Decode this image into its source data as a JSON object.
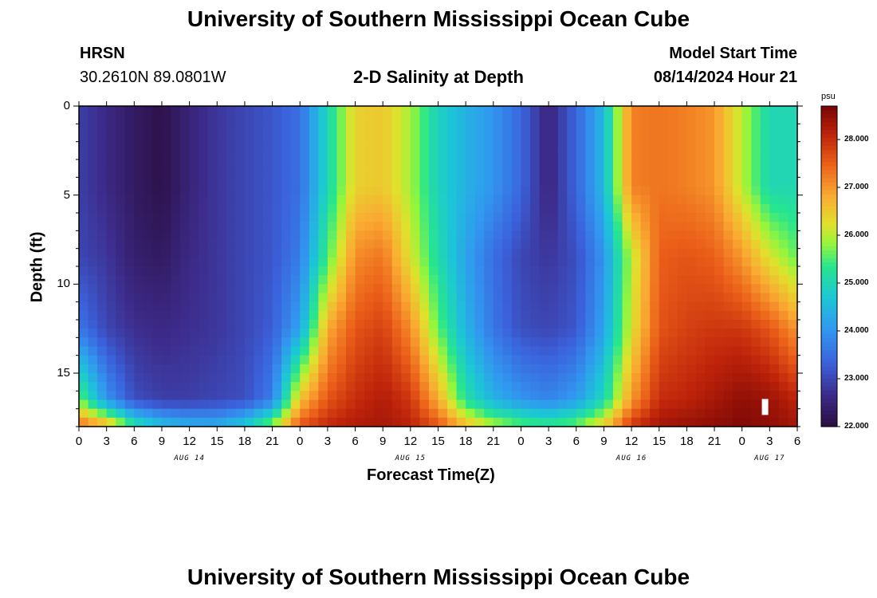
{
  "header": {
    "title_top": "University of Southern Mississippi Ocean Cube",
    "station": "HRSN",
    "coordinates": "30.2610N  89.0801W",
    "plot_title": "2-D Salinity at Depth",
    "model_label": "Model Start Time",
    "model_start": "08/14/2024 Hour 21",
    "title_bottom": "University of Southern Mississippi Ocean Cube"
  },
  "chart_data": {
    "type": "heatmap",
    "title": "2-D Salinity at Depth",
    "xlabel": "Forecast Time(Z)",
    "ylabel": "Depth (ft)",
    "x_start": "08/14/2024 00Z",
    "x_range_hours": [
      0,
      78
    ],
    "y_range_ft": [
      0,
      18
    ],
    "x_tick_labels": [
      "0",
      "3",
      "6",
      "9",
      "12",
      "15",
      "18",
      "21",
      "0",
      "3",
      "6",
      "9",
      "12",
      "15",
      "18",
      "21",
      "0",
      "3",
      "6",
      "9",
      "12",
      "15",
      "18",
      "21",
      "0",
      "3",
      "6"
    ],
    "y_ticks": [
      0,
      5,
      10,
      15
    ],
    "date_labels": [
      {
        "hour": 12,
        "label": "AUG 14"
      },
      {
        "hour": 36,
        "label": "AUG 15"
      },
      {
        "hour": 60,
        "label": "AUG 16"
      },
      {
        "hour": 75,
        "label": "AUG 17"
      }
    ],
    "colorbar": {
      "unit": "psu",
      "min": 22.0,
      "max": 28.7,
      "ticks": [
        "22.000",
        "23.000",
        "24.000",
        "25.000",
        "26.000",
        "27.000",
        "28.000"
      ]
    },
    "depth_levels_ft": [
      0.5,
      4.5,
      8.5,
      12.5,
      16.5,
      17.8
    ],
    "salinity_psu_by_hour": [
      {
        "hour": 0,
        "values": [
          22.9,
          22.9,
          23.0,
          23.6,
          25.7,
          27.2
        ]
      },
      {
        "hour": 3,
        "values": [
          22.6,
          22.6,
          22.8,
          23.0,
          24.0,
          26.5
        ]
      },
      {
        "hour": 6,
        "values": [
          22.3,
          22.3,
          22.4,
          22.7,
          23.1,
          25.0
        ]
      },
      {
        "hour": 9,
        "values": [
          22.1,
          22.1,
          22.3,
          22.6,
          22.9,
          24.4
        ]
      },
      {
        "hour": 12,
        "values": [
          22.5,
          22.5,
          22.6,
          22.7,
          22.9,
          24.2
        ]
      },
      {
        "hour": 15,
        "values": [
          22.8,
          22.8,
          22.8,
          22.8,
          23.0,
          24.2
        ]
      },
      {
        "hour": 18,
        "values": [
          23.0,
          23.0,
          23.0,
          23.0,
          23.1,
          24.6
        ]
      },
      {
        "hour": 21,
        "values": [
          23.2,
          23.2,
          23.2,
          23.3,
          23.7,
          25.6
        ]
      },
      {
        "hour": 24,
        "values": [
          23.5,
          23.5,
          23.7,
          24.2,
          26.6,
          27.5
        ]
      },
      {
        "hour": 27,
        "values": [
          25.0,
          25.0,
          25.5,
          26.8,
          27.6,
          28.0
        ]
      },
      {
        "hour": 30,
        "values": [
          26.4,
          26.4,
          27.1,
          27.6,
          28.0,
          28.2
        ]
      },
      {
        "hour": 33,
        "values": [
          26.5,
          26.5,
          27.3,
          27.8,
          28.2,
          28.3
        ]
      },
      {
        "hour": 36,
        "values": [
          25.9,
          25.9,
          26.2,
          27.1,
          27.9,
          28.1
        ]
      },
      {
        "hour": 39,
        "values": [
          24.9,
          24.9,
          25.1,
          25.6,
          26.8,
          27.5
        ]
      },
      {
        "hour": 42,
        "values": [
          24.4,
          24.4,
          24.2,
          24.4,
          25.2,
          26.5
        ]
      },
      {
        "hour": 45,
        "values": [
          24.0,
          24.0,
          23.5,
          23.6,
          24.4,
          25.8
        ]
      },
      {
        "hour": 48,
        "values": [
          23.4,
          23.4,
          23.0,
          23.1,
          24.0,
          25.4
        ]
      },
      {
        "hour": 51,
        "values": [
          22.5,
          22.5,
          22.8,
          23.0,
          23.8,
          25.2
        ]
      },
      {
        "hour": 54,
        "values": [
          23.4,
          23.4,
          23.1,
          23.2,
          24.1,
          25.5
        ]
      },
      {
        "hour": 57,
        "values": [
          24.5,
          24.5,
          24.0,
          24.2,
          25.0,
          26.3
        ]
      },
      {
        "hour": 60,
        "values": [
          27.2,
          27.2,
          26.0,
          26.2,
          27.0,
          27.8
        ]
      },
      {
        "hour": 63,
        "values": [
          27.3,
          27.3,
          27.5,
          27.6,
          28.0,
          28.3
        ]
      },
      {
        "hour": 66,
        "values": [
          27.2,
          27.2,
          27.6,
          27.8,
          28.1,
          28.4
        ]
      },
      {
        "hour": 69,
        "values": [
          27.0,
          27.0,
          27.5,
          27.9,
          28.3,
          28.5
        ]
      },
      {
        "hour": 72,
        "values": [
          26.0,
          26.0,
          27.0,
          27.9,
          28.5,
          28.6
        ]
      },
      {
        "hour": 75,
        "values": [
          25.0,
          25.0,
          26.2,
          27.6,
          28.4,
          28.5
        ]
      },
      {
        "hour": 78,
        "values": [
          25.0,
          25.0,
          25.6,
          27.0,
          28.1,
          28.3
        ]
      }
    ],
    "marker": {
      "hour": 74.5,
      "depth_ft": 16.9,
      "shape": "white-bar"
    }
  }
}
